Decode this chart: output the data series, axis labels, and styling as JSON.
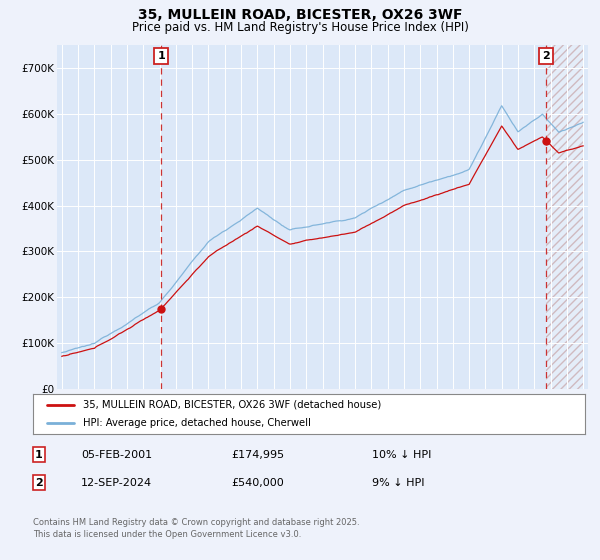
{
  "title_line1": "35, MULLEIN ROAD, BICESTER, OX26 3WF",
  "title_line2": "Price paid vs. HM Land Registry's House Price Index (HPI)",
  "background_color": "#eef2fb",
  "plot_bg_color": "#dce8f8",
  "grid_color": "#ffffff",
  "hpi_color": "#7ab0d8",
  "price_color": "#cc1111",
  "dashed_color": "#cc3333",
  "ylim": [
    0,
    750000
  ],
  "ytick_labels": [
    "£0",
    "£100K",
    "£200K",
    "£300K",
    "£400K",
    "£500K",
    "£600K",
    "£700K"
  ],
  "ytick_values": [
    0,
    100000,
    200000,
    300000,
    400000,
    500000,
    600000,
    700000
  ],
  "marker1_year": 2001.1,
  "marker1_price": 174995,
  "marker2_year": 2024.72,
  "marker2_price": 540000,
  "legend_line1": "35, MULLEIN ROAD, BICESTER, OX26 3WF (detached house)",
  "legend_line2": "HPI: Average price, detached house, Cherwell",
  "footnote_row1_label": "1",
  "footnote_row1_date": "05-FEB-2001",
  "footnote_row1_price": "£174,995",
  "footnote_row1_hpi": "10% ↓ HPI",
  "footnote_row2_label": "2",
  "footnote_row2_date": "12-SEP-2024",
  "footnote_row2_price": "£540,000",
  "footnote_row2_hpi": "9% ↓ HPI",
  "copyright_text": "Contains HM Land Registry data © Crown copyright and database right 2025.\nThis data is licensed under the Open Government Licence v3.0."
}
